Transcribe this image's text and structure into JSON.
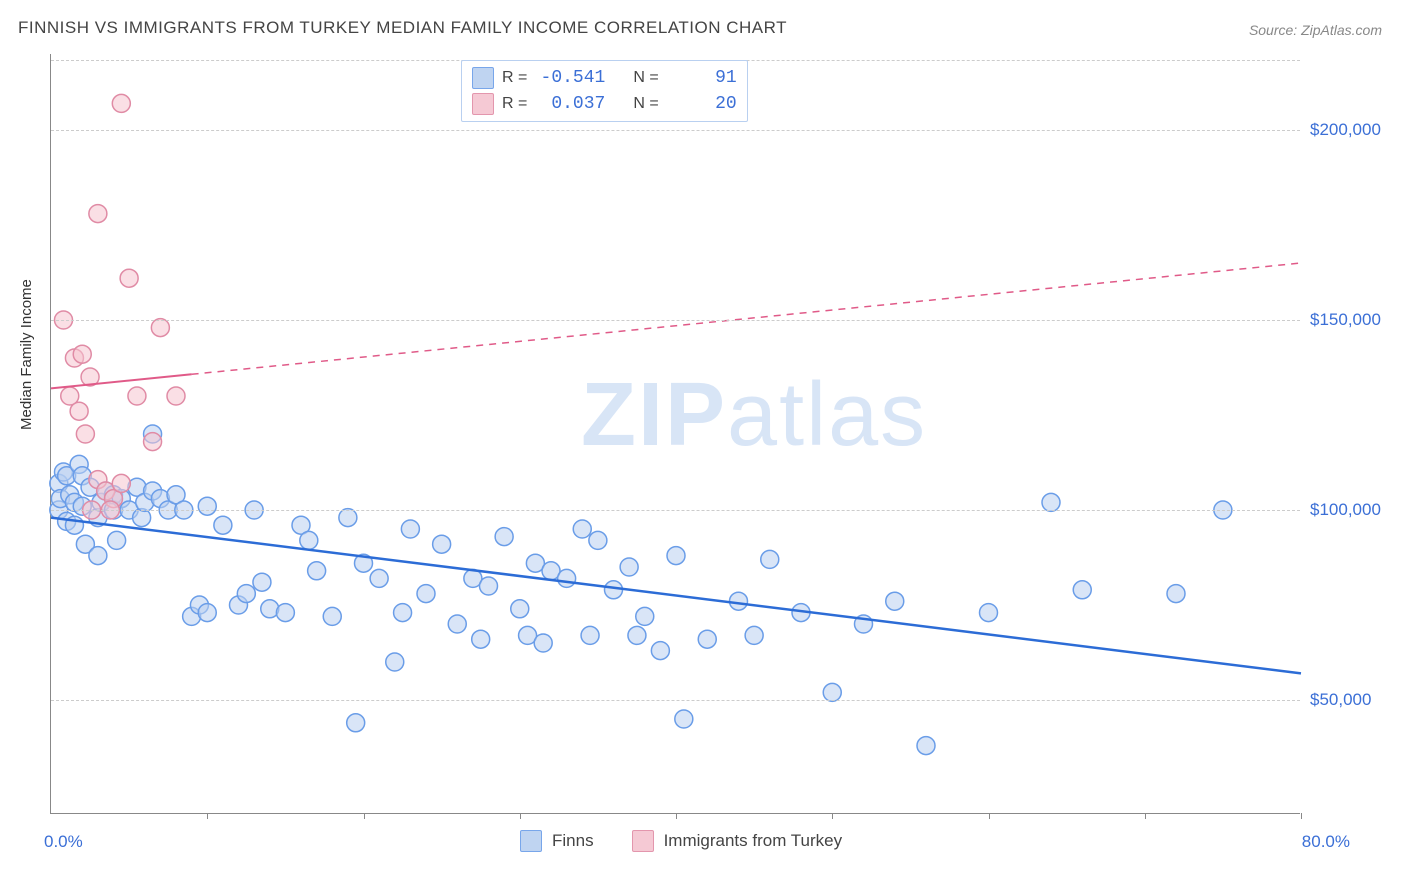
{
  "title": "FINNISH VS IMMIGRANTS FROM TURKEY MEDIAN FAMILY INCOME CORRELATION CHART",
  "source": "Source: ZipAtlas.com",
  "ylabel": "Median Family Income",
  "watermark_bold": "ZIP",
  "watermark_rest": "atlas",
  "chart": {
    "type": "scatter",
    "xlim": [
      0,
      80
    ],
    "ylim": [
      20000,
      220000
    ],
    "x_tick_positions": [
      0,
      10,
      20,
      30,
      40,
      50,
      60,
      70,
      80
    ],
    "x_tick_labels_shown": {
      "0": "0.0%",
      "80": "80.0%"
    },
    "y_gridlines": [
      50000,
      100000,
      150000,
      200000
    ],
    "y_tick_labels": {
      "50000": "$50,000",
      "100000": "$100,000",
      "150000": "$150,000",
      "200000": "$200,000"
    },
    "background_color": "#ffffff",
    "grid_color": "#cccccc",
    "axis_color": "#888888",
    "label_color": "#3b6fd6",
    "series": [
      {
        "name": "Finns",
        "label": "Finns",
        "marker_fill": "#b9d0f0",
        "marker_stroke": "#6a9de8",
        "marker_fill_opacity": 0.55,
        "marker_radius": 9,
        "trend_color": "#2c6cd6",
        "trend_width": 2.5,
        "trend": {
          "x1": 0,
          "y1": 98000,
          "x2": 80,
          "y2": 57000,
          "dash_from_x": null
        },
        "R": "-0.541",
        "N": "91",
        "points": [
          [
            0.5,
            107000
          ],
          [
            0.5,
            100000
          ],
          [
            0.6,
            103000
          ],
          [
            0.8,
            110000
          ],
          [
            1,
            97000
          ],
          [
            1,
            109000
          ],
          [
            1.2,
            104000
          ],
          [
            1.5,
            102000
          ],
          [
            1.5,
            96000
          ],
          [
            1.8,
            112000
          ],
          [
            2,
            101000
          ],
          [
            2,
            109000
          ],
          [
            2.2,
            91000
          ],
          [
            2.5,
            106000
          ],
          [
            3,
            88000
          ],
          [
            3,
            98000
          ],
          [
            3.2,
            102000
          ],
          [
            3.5,
            105000
          ],
          [
            4,
            100000
          ],
          [
            4,
            104000
          ],
          [
            4.2,
            92000
          ],
          [
            4.5,
            103000
          ],
          [
            5,
            100000
          ],
          [
            5.5,
            106000
          ],
          [
            5.8,
            98000
          ],
          [
            6,
            102000
          ],
          [
            6.5,
            120000
          ],
          [
            6.5,
            105000
          ],
          [
            7,
            103000
          ],
          [
            7.5,
            100000
          ],
          [
            8,
            104000
          ],
          [
            8.5,
            100000
          ],
          [
            9,
            72000
          ],
          [
            9.5,
            75000
          ],
          [
            10,
            73000
          ],
          [
            10,
            101000
          ],
          [
            11,
            96000
          ],
          [
            12,
            75000
          ],
          [
            12.5,
            78000
          ],
          [
            13,
            100000
          ],
          [
            13.5,
            81000
          ],
          [
            14,
            74000
          ],
          [
            15,
            73000
          ],
          [
            16,
            96000
          ],
          [
            16.5,
            92000
          ],
          [
            17,
            84000
          ],
          [
            18,
            72000
          ],
          [
            19,
            98000
          ],
          [
            19.5,
            44000
          ],
          [
            20,
            86000
          ],
          [
            21,
            82000
          ],
          [
            22,
            60000
          ],
          [
            22.5,
            73000
          ],
          [
            23,
            95000
          ],
          [
            24,
            78000
          ],
          [
            25,
            91000
          ],
          [
            26,
            70000
          ],
          [
            27,
            82000
          ],
          [
            27.5,
            66000
          ],
          [
            28,
            80000
          ],
          [
            29,
            93000
          ],
          [
            30,
            74000
          ],
          [
            30.5,
            67000
          ],
          [
            31,
            86000
          ],
          [
            31.5,
            65000
          ],
          [
            32,
            84000
          ],
          [
            33,
            82000
          ],
          [
            34,
            95000
          ],
          [
            34.5,
            67000
          ],
          [
            35,
            92000
          ],
          [
            36,
            79000
          ],
          [
            37,
            85000
          ],
          [
            37.5,
            67000
          ],
          [
            38,
            72000
          ],
          [
            39,
            63000
          ],
          [
            40,
            88000
          ],
          [
            40.5,
            45000
          ],
          [
            42,
            66000
          ],
          [
            44,
            76000
          ],
          [
            45,
            67000
          ],
          [
            46,
            87000
          ],
          [
            48,
            73000
          ],
          [
            50,
            52000
          ],
          [
            52,
            70000
          ],
          [
            54,
            76000
          ],
          [
            56,
            38000
          ],
          [
            60,
            73000
          ],
          [
            64,
            102000
          ],
          [
            66,
            79000
          ],
          [
            72,
            78000
          ],
          [
            75,
            100000
          ]
        ]
      },
      {
        "name": "Immigrants from Turkey",
        "label": "Immigrants from Turkey",
        "marker_fill": "#f5c4d0",
        "marker_stroke": "#e08ba5",
        "marker_fill_opacity": 0.55,
        "marker_radius": 9,
        "trend_color": "#e05a88",
        "trend_width": 2,
        "trend": {
          "x1": 0,
          "y1": 132000,
          "x2": 80,
          "y2": 165000,
          "dash_from_x": 9
        },
        "R": "0.037",
        "N": "20",
        "points": [
          [
            0.8,
            150000
          ],
          [
            1.5,
            140000
          ],
          [
            1.2,
            130000
          ],
          [
            2.0,
            141000
          ],
          [
            1.8,
            126000
          ],
          [
            2.5,
            135000
          ],
          [
            3.0,
            108000
          ],
          [
            2.2,
            120000
          ],
          [
            3.5,
            105000
          ],
          [
            4.0,
            103000
          ],
          [
            3.0,
            178000
          ],
          [
            4.5,
            207000
          ],
          [
            5.0,
            161000
          ],
          [
            5.5,
            130000
          ],
          [
            6.5,
            118000
          ],
          [
            7.0,
            148000
          ],
          [
            8.0,
            130000
          ],
          [
            3.8,
            100000
          ],
          [
            4.5,
            107000
          ],
          [
            2.6,
            100000
          ]
        ]
      }
    ],
    "legend_top": {
      "r_label": "R =",
      "n_label": "N ="
    },
    "legend_bottom": [
      {
        "series": 0
      },
      {
        "series": 1
      }
    ]
  }
}
